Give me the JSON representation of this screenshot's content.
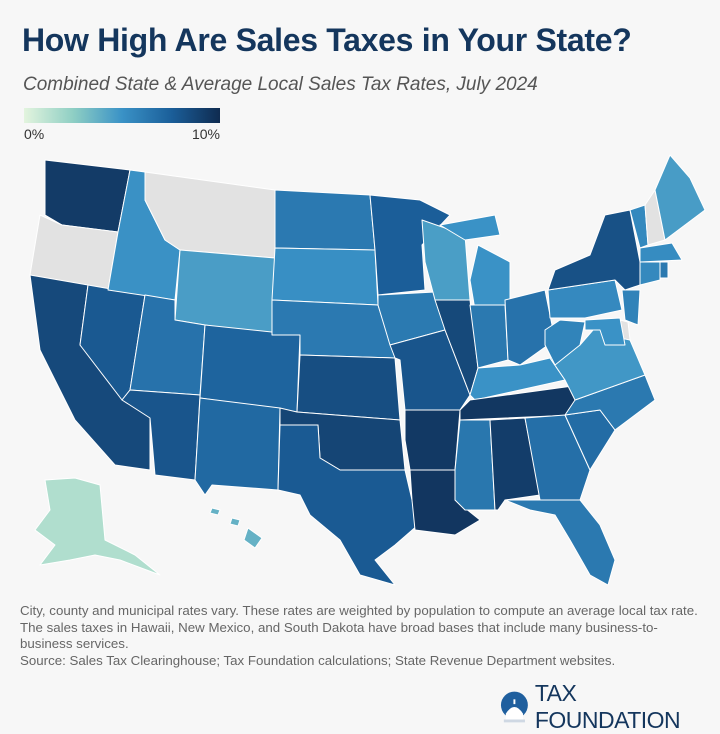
{
  "header": {
    "title": "How High Are Sales Taxes in Your State?",
    "subtitle": "Combined State & Average Local Sales Tax Rates, July 2024"
  },
  "legend": {
    "min_label": "0%",
    "max_label": "10%",
    "min_color": "#e3f4de",
    "max_color": "#0f2b50",
    "no_tax_color": "#e2e2e2"
  },
  "map_data": {
    "unit": "%",
    "range": [
      0,
      10
    ],
    "states": {
      "AL": 9.29,
      "AK": 1.82,
      "AZ": 8.38,
      "AR": 9.45,
      "CA": 8.85,
      "CO": 7.81,
      "CT": 6.35,
      "DE": 0,
      "FL": 7.0,
      "GA": 7.38,
      "HI": 4.5,
      "ID": 6.03,
      "IL": 8.86,
      "IN": 7.0,
      "IA": 6.94,
      "KS": 8.66,
      "KY": 6.0,
      "LA": 9.56,
      "ME": 5.5,
      "MD": 6.0,
      "MA": 6.25,
      "MI": 6.0,
      "MN": 8.04,
      "MS": 7.07,
      "MO": 8.39,
      "MT": 0,
      "NE": 6.97,
      "NV": 8.24,
      "NH": 0,
      "NJ": 6.6,
      "NM": 7.62,
      "NY": 8.53,
      "NC": 7.0,
      "ND": 6.97,
      "OH": 7.24,
      "OK": 8.99,
      "OR": 0,
      "PA": 6.34,
      "RI": 7.0,
      "SC": 7.49,
      "SD": 6.11,
      "TN": 9.55,
      "TX": 8.2,
      "UT": 7.25,
      "VT": 6.36,
      "VA": 5.77,
      "WA": 9.38,
      "WV": 6.55,
      "WI": 5.43,
      "WY": 5.44
    }
  },
  "footer": {
    "note": "City, county and municipal rates vary. These rates are weighted by population to compute an average local tax rate. The sales taxes in Hawaii, New Mexico, and South Dakota have broad bases that include many business-to-business services.",
    "source": "Source: Sales Tax Clearinghouse; Tax Foundation calculations; State Revenue Department websites.",
    "logo": "TAX FOUNDATION"
  }
}
